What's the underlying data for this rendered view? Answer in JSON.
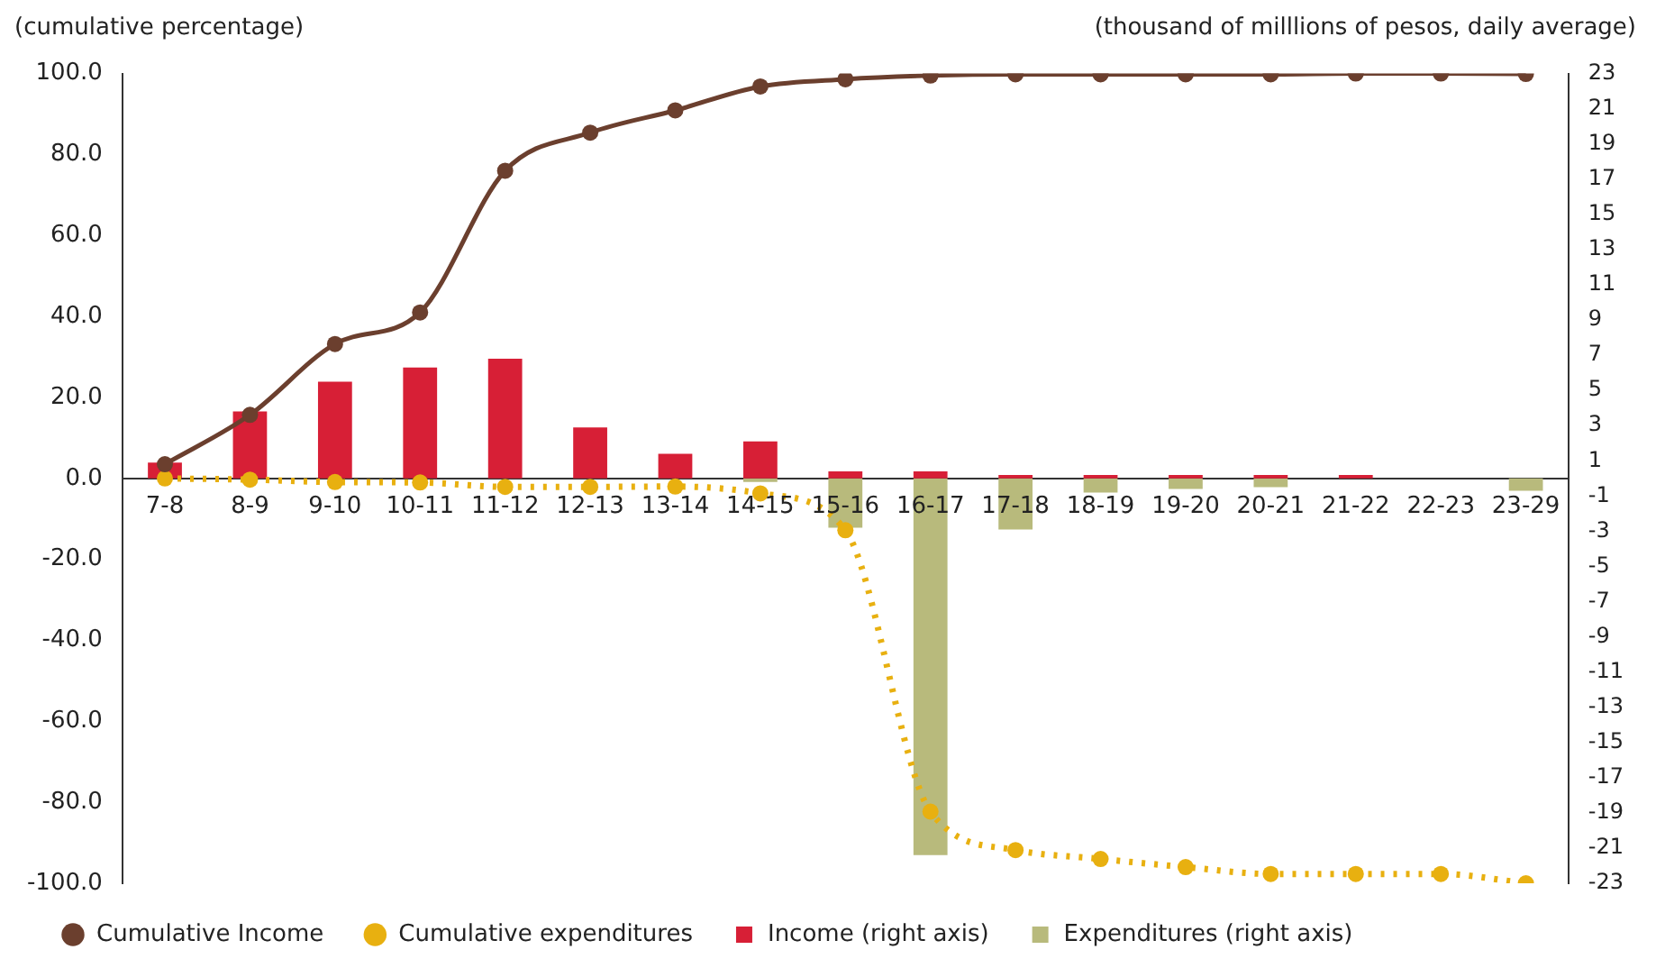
{
  "chart_data": {
    "type": "bar",
    "ylabel": "(cumulative percentage)",
    "y2label": "(thousand of milllions of pesos, daily average)",
    "categories": [
      "7-8",
      "8-9",
      "9-10",
      "10-11",
      "11-12",
      "12-13",
      "13-14",
      "14-15",
      "15-16",
      "16-17",
      "17-18",
      "18-19",
      "19-20",
      "20-21",
      "21-22",
      "22-23",
      "23-29"
    ],
    "series": [
      {
        "name": "Cumulative Income",
        "type": "line",
        "color": "#6b3f2e",
        "marker": "circle",
        "line_style": "solid",
        "values": [
          3.5,
          15.7,
          33.2,
          41,
          76,
          85.4,
          90.9,
          96.8,
          98.6,
          99.5,
          99.8,
          99.8,
          99.8,
          99.8,
          100,
          100,
          99.9
        ]
      },
      {
        "name": "Cumulative expenditures",
        "type": "line",
        "color": "#e8b010",
        "marker": "circle",
        "line_style": "dotted",
        "values": [
          0,
          -0.3,
          -0.9,
          -1,
          -2.1,
          -2.1,
          -2,
          -3.7,
          -12.8,
          -82.3,
          -91.8,
          -94,
          -96,
          -97.7,
          -97.7,
          -97.7,
          -100
        ]
      },
      {
        "name": "Income (right axis)",
        "type": "bar",
        "axis": "y2",
        "color": "#d71f36",
        "values": [
          0.9,
          3.8,
          5.5,
          6.3,
          6.8,
          2.9,
          1.4,
          2.1,
          0.4,
          0.4,
          0.2,
          0.2,
          0.2,
          0.2,
          0.2,
          0,
          0
        ]
      },
      {
        "name": "Expenditures (right axis)",
        "type": "bar",
        "axis": "y2",
        "color": "#b8ba7c",
        "values": [
          0,
          0,
          0,
          0,
          0,
          0,
          0,
          -0.2,
          -2.8,
          -21.4,
          -2.9,
          -0.8,
          -0.6,
          -0.5,
          0,
          0,
          -0.7
        ]
      }
    ],
    "stacked": true,
    "ylim": [
      -100,
      100
    ],
    "yticks": [
      {
        "value": -100,
        "label": "-100.0"
      },
      {
        "value": -80,
        "label": "-80.0"
      },
      {
        "value": -60,
        "label": "-60.0"
      },
      {
        "value": -40,
        "label": "-40.0"
      },
      {
        "value": -20,
        "label": "-20.0"
      },
      {
        "value": 0,
        "label": "0.0"
      },
      {
        "value": 20,
        "label": "20.0"
      },
      {
        "value": 40,
        "label": "40.0"
      },
      {
        "value": 60,
        "label": "60.0"
      },
      {
        "value": 80,
        "label": "80.0"
      },
      {
        "value": 100,
        "label": "100.0"
      }
    ],
    "y2lim": [
      -23,
      23
    ],
    "y2ticks": [
      -23,
      -21,
      -19,
      -17,
      -15,
      -13,
      -11,
      -9,
      -7,
      -5,
      -3,
      -1,
      1,
      3,
      5,
      7,
      9,
      11,
      13,
      15,
      17,
      19,
      21,
      23
    ],
    "grid": false,
    "legend": "bottom"
  }
}
